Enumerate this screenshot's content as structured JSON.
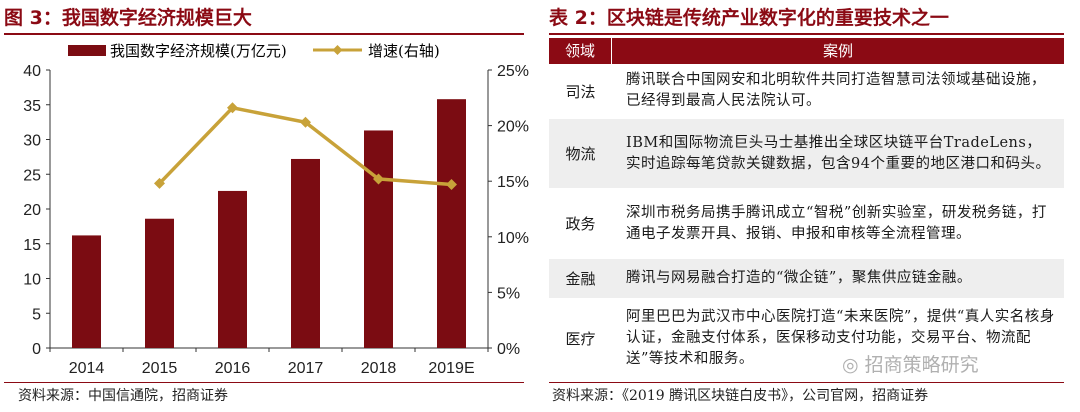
{
  "left": {
    "title": "图 3：我国数字经济规模巨大",
    "source": "资料来源：中国信通院，招商证券"
  },
  "right": {
    "title": "表 2：区块链是传统产业数字化的重要技术之一",
    "source": "资料来源：《2019 腾讯区块链白皮书》，公司官网，招商证券",
    "table": {
      "headers": [
        "领域",
        "案例"
      ],
      "rows": [
        {
          "field": "司法",
          "case": "腾讯联合中国网安和北明软件共同打造智慧司法领域基础设施，已经得到最高人民法院认可。"
        },
        {
          "field": "物流",
          "case": "IBM和国际物流巨头马士基推出全球区块链平台TradeLens，实时追踪每笔贷款关键数据，包含94个重要的地区港口和码头。"
        },
        {
          "field": "政务",
          "case": "深圳市税务局携手腾讯成立“智税”创新实验室，研发税务链，打通电子发票开具、报销、申报和审核等全流程管理。"
        },
        {
          "field": "金融",
          "case": "腾讯与网易融合打造的“微企链”，聚焦供应链金融。"
        },
        {
          "field": "医疗",
          "case": "阿里巴巴为武汉市中心医院打造“未来医院”，提供“真人实名核身认证，金融支付体系，医保移动支付功能，交易平台、物流配送”等技术和服务。"
        }
      ]
    }
  },
  "watermark": "招商策略研究",
  "chart_data": {
    "type": "bar",
    "categories": [
      "2014",
      "2015",
      "2016",
      "2017",
      "2018",
      "2019E"
    ],
    "series": [
      {
        "name": "我国数字经济规模(万亿元)",
        "type": "bar",
        "axis": "left",
        "values": [
          16.2,
          18.6,
          22.6,
          27.2,
          31.3,
          35.8
        ],
        "color": "#7b0c12"
      },
      {
        "name": "增速(右轴)",
        "type": "line",
        "axis": "right",
        "values": [
          null,
          14.8,
          21.6,
          20.3,
          15.2,
          14.7
        ],
        "color": "#c8a239"
      }
    ],
    "ylim": [
      0,
      40
    ],
    "yticks": [
      0,
      5,
      10,
      15,
      20,
      25,
      30,
      35,
      40
    ],
    "y2lim": [
      0,
      25
    ],
    "y2ticks": [
      "0%",
      "5%",
      "10%",
      "15%",
      "20%",
      "25%"
    ],
    "legend": "top"
  }
}
